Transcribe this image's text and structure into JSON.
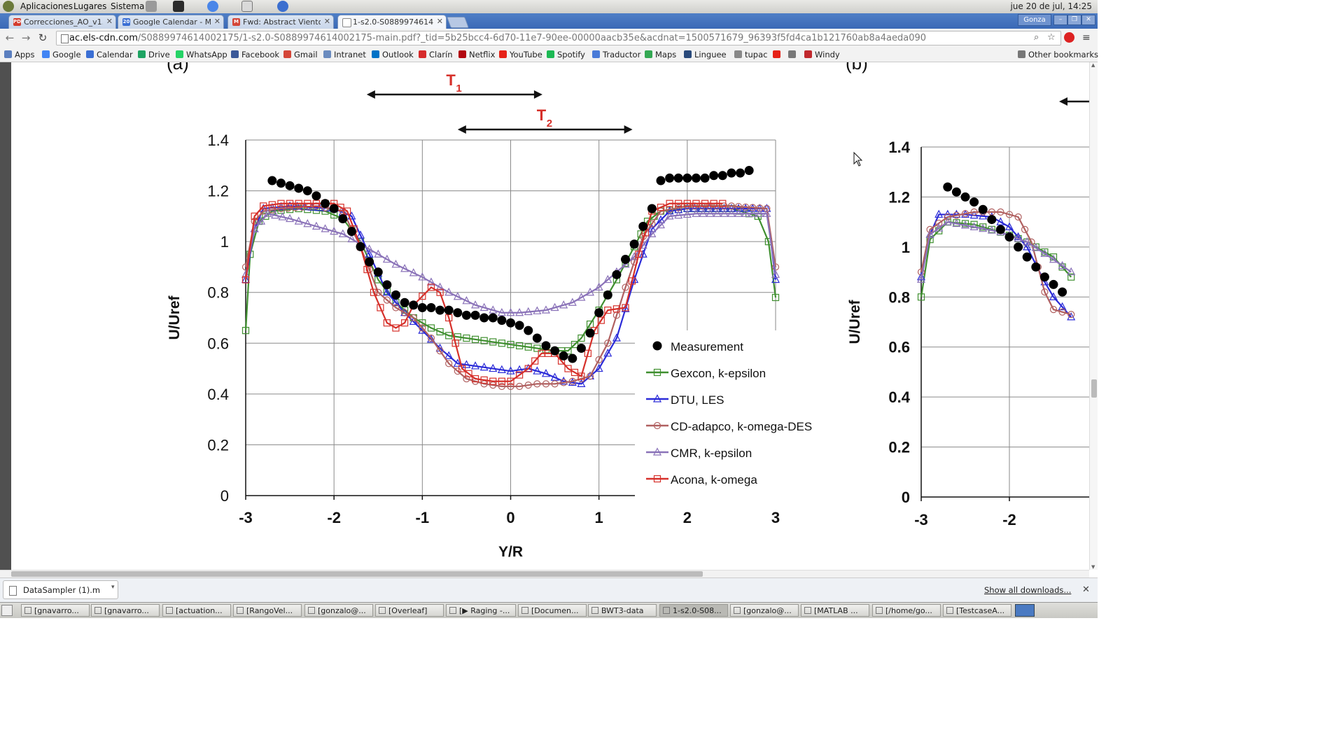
{
  "top_panel": {
    "menus": [
      "Aplicaciones",
      "Lugares",
      "Sistema"
    ],
    "clock": "jue 20 de jul, 14:25"
  },
  "tabs": [
    {
      "title": "Correcciones_AO_v1.pdf",
      "icon": "pdf-icon",
      "icon_text": "PDF",
      "icon_color": "#d33b2c"
    },
    {
      "title": "Google Calendar - Me",
      "icon": "calendar-icon",
      "icon_text": "20",
      "icon_color": "#3b6fd4"
    },
    {
      "title": "Fwd: Abstract Viento",
      "icon": "gmail-icon",
      "icon_text": "M",
      "icon_color": "#d44638"
    },
    {
      "title": "1-s2.0-S0889974614",
      "icon": "document-icon",
      "icon_text": "",
      "icon_color": "#888888"
    }
  ],
  "profile_name": "Gonza",
  "address_bar": {
    "host": "ac.els-cdn.com",
    "path": "/S0889974614002175/1-s2.0-S0889974614002175-main.pdf?_tid=5b25bcc4-6d70-11e7-90ee-00000aacb35e&acdnat=1500571679_96393f5fd4ca1b121760ab8a4aeda090"
  },
  "bookmarks": [
    {
      "label": "Apps",
      "color": "#5b7fbf"
    },
    {
      "label": "Google",
      "color": "#4285f4"
    },
    {
      "label": "Calendar",
      "color": "#3b6fd4"
    },
    {
      "label": "Drive",
      "color": "#1ea362"
    },
    {
      "label": "WhatsApp",
      "color": "#25d366"
    },
    {
      "label": "Facebook",
      "color": "#3b5998"
    },
    {
      "label": "Gmail",
      "color": "#d44638"
    },
    {
      "label": "Intranet",
      "color": "#6a8bbf"
    },
    {
      "label": "Outlook",
      "color": "#0072c6"
    },
    {
      "label": "Clarín",
      "color": "#d62b2b"
    },
    {
      "label": "Netflix",
      "color": "#b20710"
    },
    {
      "label": "YouTube",
      "color": "#e62117"
    },
    {
      "label": "Spotify",
      "color": "#1db954"
    },
    {
      "label": "Traductor",
      "color": "#4a7bd8"
    },
    {
      "label": "Maps",
      "color": "#34a853"
    },
    {
      "label": "Linguee",
      "color": "#2a4a7b"
    },
    {
      "label": "tupac",
      "color": "#888888"
    },
    {
      "label": "",
      "color": "#e62117"
    },
    {
      "label": "",
      "color": "#777777"
    },
    {
      "label": "Windy",
      "color": "#c0282d"
    }
  ],
  "other_bookmarks": "Other bookmarks",
  "chart_data": [
    {
      "type": "line",
      "panel_label": "(a)",
      "xlabel": "Y/R",
      "ylabel": "U/Uref",
      "xlim": [
        -3,
        3
      ],
      "ylim": [
        0,
        1.4
      ],
      "xticks": [
        "-3",
        "-2",
        "-1",
        "0",
        "1",
        "2",
        "3"
      ],
      "yticks": [
        "0",
        "0.2",
        "0.4",
        "0.6",
        "0.8",
        "1",
        "1.2",
        "1.4"
      ],
      "grid": true,
      "legend_position": "bottom-right",
      "annotations": [
        {
          "label": "T",
          "sub": "1",
          "x_from": -1.63,
          "x_to": 0.36,
          "color": "#d6302a"
        },
        {
          "label": "T",
          "sub": "2",
          "x_from": -0.6,
          "x_to": 1.38,
          "color": "#d6302a"
        }
      ],
      "series": [
        {
          "name": "Gexcon, k-epsilon",
          "color": "#3f8f2f",
          "marker": "square",
          "x": [
            -3,
            -2.95,
            -2.85,
            -2.7,
            -2.4,
            -2.1,
            -1.9,
            -1.7,
            -1.5,
            -1.3,
            -1.1,
            -0.9,
            -0.7,
            -0.5,
            -0.3,
            -0.1,
            0.1,
            0.3,
            0.5,
            0.65,
            0.8,
            1.0,
            1.2,
            1.4,
            1.55,
            1.7,
            2.0,
            2.5,
            2.8,
            2.92,
            3.0
          ],
          "y": [
            0.65,
            0.95,
            1.08,
            1.12,
            1.13,
            1.12,
            1.09,
            1.0,
            0.85,
            0.76,
            0.7,
            0.66,
            0.63,
            0.62,
            0.61,
            0.6,
            0.59,
            0.58,
            0.57,
            0.57,
            0.62,
            0.73,
            0.85,
            0.98,
            1.08,
            1.12,
            1.13,
            1.13,
            1.1,
            1.0,
            0.78
          ]
        },
        {
          "name": "DTU, LES",
          "color": "#2b2bd8",
          "marker": "triangle",
          "x": [
            -3,
            -2.9,
            -2.8,
            -2.5,
            -2.0,
            -1.8,
            -1.6,
            -1.4,
            -1.2,
            -1.0,
            -0.8,
            -0.6,
            -0.4,
            -0.2,
            0.0,
            0.2,
            0.4,
            0.6,
            0.8,
            1.0,
            1.2,
            1.4,
            1.6,
            1.8,
            2.0,
            2.5,
            2.9,
            3.0
          ],
          "y": [
            0.85,
            1.05,
            1.13,
            1.14,
            1.13,
            1.1,
            0.95,
            0.8,
            0.72,
            0.65,
            0.58,
            0.52,
            0.51,
            0.5,
            0.49,
            0.5,
            0.48,
            0.45,
            0.44,
            0.5,
            0.62,
            0.85,
            1.05,
            1.12,
            1.13,
            1.13,
            1.13,
            0.85
          ]
        },
        {
          "name": "CD-adapco, k-omega-DES",
          "color": "#b06060",
          "marker": "circle",
          "x": [
            -3,
            -2.9,
            -2.8,
            -2.6,
            -2.2,
            -1.9,
            -1.7,
            -1.5,
            -1.3,
            -1.1,
            -0.9,
            -0.7,
            -0.5,
            -0.3,
            -0.1,
            0.1,
            0.3,
            0.5,
            0.7,
            0.9,
            1.1,
            1.3,
            1.5,
            1.7,
            2.0,
            2.5,
            2.9,
            3.0
          ],
          "y": [
            0.9,
            1.08,
            1.12,
            1.13,
            1.14,
            1.12,
            0.98,
            0.8,
            0.74,
            0.7,
            0.62,
            0.52,
            0.46,
            0.44,
            0.43,
            0.43,
            0.44,
            0.44,
            0.45,
            0.47,
            0.6,
            0.82,
            1.02,
            1.12,
            1.14,
            1.14,
            1.13,
            0.9
          ]
        },
        {
          "name": "CMR, k-epsilon",
          "color": "#8a72b8",
          "marker": "triangle",
          "x": [
            -3,
            -2.9,
            -2.75,
            -2.5,
            -2.2,
            -1.9,
            -1.6,
            -1.3,
            -1.0,
            -0.7,
            -0.4,
            -0.1,
            0.1,
            0.4,
            0.7,
            1.0,
            1.2,
            1.4,
            1.6,
            1.8,
            2.1,
            2.5,
            2.9,
            3.0
          ],
          "y": [
            0.87,
            1.05,
            1.11,
            1.09,
            1.06,
            1.03,
            0.97,
            0.91,
            0.86,
            0.8,
            0.75,
            0.72,
            0.72,
            0.73,
            0.76,
            0.82,
            0.88,
            0.94,
            1.03,
            1.1,
            1.11,
            1.11,
            1.11,
            0.87
          ]
        },
        {
          "name": "Acona, k-omega",
          "color": "#d6302a",
          "marker": "square",
          "x": [
            -3,
            -2.9,
            -2.8,
            -2.6,
            -2.3,
            -2.0,
            -1.85,
            -1.7,
            -1.55,
            -1.4,
            -1.3,
            -1.2,
            -1.1,
            -0.9,
            -0.8,
            -0.7,
            -0.55,
            -0.4,
            -0.2,
            0.0,
            0.2,
            0.35,
            0.5,
            0.65,
            0.8,
            0.95,
            1.1,
            1.3,
            1.45,
            1.6,
            1.8,
            2.1,
            2.4
          ],
          "y": [
            0.85,
            1.1,
            1.14,
            1.15,
            1.15,
            1.15,
            1.12,
            0.98,
            0.8,
            0.68,
            0.66,
            0.68,
            0.75,
            0.82,
            0.8,
            0.7,
            0.5,
            0.46,
            0.45,
            0.45,
            0.5,
            0.56,
            0.56,
            0.5,
            0.47,
            0.65,
            0.73,
            0.74,
            0.95,
            1.12,
            1.15,
            1.15,
            1.15
          ]
        },
        {
          "name": "Measurement",
          "color": "#000000",
          "marker": "dot",
          "x": [
            -2.7,
            -2.6,
            -2.5,
            -2.4,
            -2.3,
            -2.2,
            -2.1,
            -2.0,
            -1.9,
            -1.8,
            -1.7,
            -1.6,
            -1.5,
            -1.4,
            -1.3,
            -1.2,
            -1.1,
            -1.0,
            -0.9,
            -0.8,
            -0.7,
            -0.6,
            -0.5,
            -0.4,
            -0.3,
            -0.2,
            -0.1,
            0.0,
            0.1,
            0.2,
            0.3,
            0.4,
            0.5,
            0.6,
            0.7,
            0.8,
            0.9,
            1.0,
            1.1,
            1.2,
            1.3,
            1.4,
            1.5,
            1.6,
            1.7,
            1.8,
            1.9,
            2.0,
            2.1,
            2.2,
            2.3,
            2.4,
            2.5,
            2.6,
            2.7
          ],
          "y": [
            1.24,
            1.23,
            1.22,
            1.21,
            1.2,
            1.18,
            1.15,
            1.13,
            1.09,
            1.04,
            0.98,
            0.92,
            0.88,
            0.83,
            0.79,
            0.76,
            0.75,
            0.74,
            0.74,
            0.73,
            0.73,
            0.72,
            0.71,
            0.71,
            0.7,
            0.7,
            0.69,
            0.68,
            0.67,
            0.65,
            0.62,
            0.59,
            0.57,
            0.55,
            0.54,
            0.58,
            0.64,
            0.72,
            0.79,
            0.87,
            0.93,
            0.99,
            1.06,
            1.13,
            1.24,
            1.25,
            1.25,
            1.25,
            1.25,
            1.25,
            1.26,
            1.26,
            1.27,
            1.27,
            1.28
          ]
        }
      ],
      "legend_order": [
        "Measurement",
        "Gexcon, k-epsilon",
        "DTU, LES",
        "CD-adapco, k-omega-DES",
        "CMR, k-epsilon",
        "Acona, k-omega"
      ]
    },
    {
      "type": "line",
      "panel_label": "(b)",
      "ylabel": "U/Uref",
      "ylim": [
        0,
        1.4
      ],
      "xticks": [
        "-3",
        "-2"
      ],
      "yticks": [
        "0",
        "0.2",
        "0.4",
        "0.6",
        "0.8",
        "1",
        "1.2",
        "1.4"
      ],
      "series": [
        {
          "name": "Measurement",
          "color": "#000000",
          "marker": "dot",
          "x": [
            -2.7,
            -2.6,
            -2.5,
            -2.4,
            -2.3,
            -2.2,
            -2.1,
            -2.0,
            -1.9,
            -1.8,
            -1.7,
            -1.6,
            -1.5,
            -1.4
          ],
          "y": [
            1.24,
            1.22,
            1.2,
            1.18,
            1.15,
            1.11,
            1.07,
            1.04,
            1.0,
            0.96,
            0.92,
            0.88,
            0.85,
            0.82
          ]
        },
        {
          "name": "Gexcon, k-epsilon",
          "color": "#3f8f2f",
          "marker": "square",
          "x": [
            -3,
            -2.9,
            -2.7,
            -2.4,
            -2.1,
            -1.8,
            -1.5,
            -1.3
          ],
          "y": [
            0.8,
            1.03,
            1.1,
            1.09,
            1.06,
            1.02,
            0.96,
            0.88
          ]
        },
        {
          "name": "DTU, LES",
          "color": "#2b2bd8",
          "marker": "triangle",
          "x": [
            -3,
            -2.9,
            -2.8,
            -2.5,
            -2.2,
            -2.0,
            -1.8,
            -1.6,
            -1.5,
            -1.3
          ],
          "y": [
            0.88,
            1.05,
            1.13,
            1.13,
            1.12,
            1.08,
            1.0,
            0.86,
            0.8,
            0.72
          ]
        },
        {
          "name": "CD-adapco, k-omega-DES",
          "color": "#b06060",
          "marker": "circle",
          "x": [
            -3,
            -2.9,
            -2.7,
            -2.4,
            -2.1,
            -1.9,
            -1.75,
            -1.6,
            -1.5,
            -1.3
          ],
          "y": [
            0.9,
            1.07,
            1.12,
            1.14,
            1.14,
            1.12,
            1.02,
            0.82,
            0.75,
            0.73
          ]
        },
        {
          "name": "CMR, k-epsilon",
          "color": "#8a72b8",
          "marker": "triangle",
          "x": [
            -3,
            -2.9,
            -2.7,
            -2.4,
            -2.1,
            -1.8,
            -1.5,
            -1.3
          ],
          "y": [
            0.87,
            1.05,
            1.1,
            1.08,
            1.06,
            1.02,
            0.95,
            0.9
          ]
        }
      ]
    }
  ],
  "downloads_bar": {
    "file_name": "DataSampler (1).m",
    "show_all": "Show all downloads..."
  },
  "taskbar": {
    "tasks": [
      "[gnavarro...",
      "[gnavarro...",
      "[actuation...",
      "[RangoVel...",
      "[gonzalo@...",
      "[Overleaf]",
      "[▶ Raging -...",
      "[Documen...",
      "BWT3-data",
      "1-s2.0-S08...",
      "[gonzalo@...",
      "[MATLAB ...",
      "[/home/go...",
      "[TestcaseA..."
    ]
  }
}
